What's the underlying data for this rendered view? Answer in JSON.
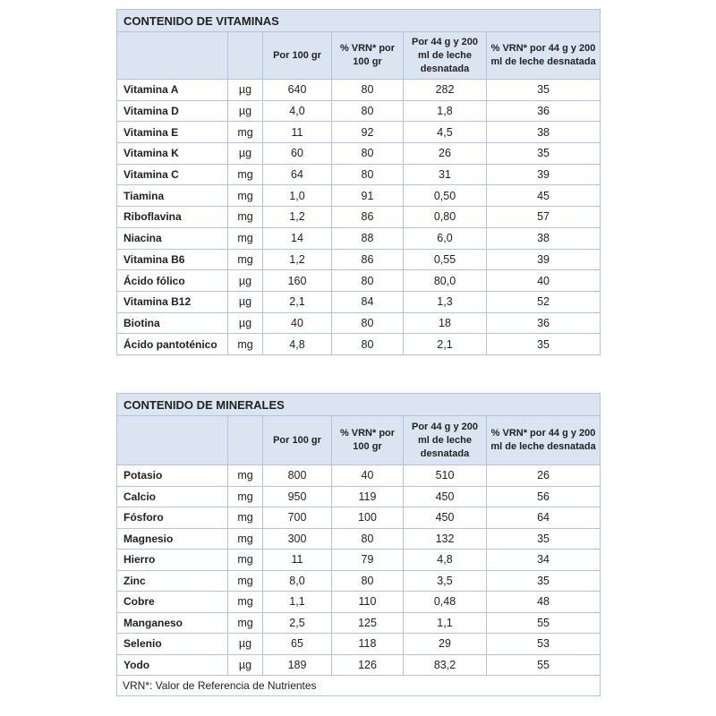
{
  "tables": [
    {
      "title": "CONTENIDO DE VITAMINAS",
      "headers": [
        "",
        "",
        "Por 100 gr",
        "% VRN* por 100 gr",
        "Por 44 g y 200 ml de leche desnatada",
        "% VRN* por 44 g y 200 ml de leche desnatada"
      ],
      "rows": [
        [
          "Vitamina A",
          "µg",
          "640",
          "80",
          "282",
          "35"
        ],
        [
          "Vitamina D",
          "µg",
          "4,0",
          "80",
          "1,8",
          "36"
        ],
        [
          "Vitamina E",
          "mg",
          "11",
          "92",
          "4,5",
          "38"
        ],
        [
          "Vitamina K",
          "µg",
          "60",
          "80",
          "26",
          "35"
        ],
        [
          "Vitamina C",
          "mg",
          "64",
          "80",
          "31",
          "39"
        ],
        [
          "Tiamina",
          "mg",
          "1,0",
          "91",
          "0,50",
          "45"
        ],
        [
          "Riboflavina",
          "mg",
          "1,2",
          "86",
          "0,80",
          "57"
        ],
        [
          "Niacina",
          "mg",
          "14",
          "88",
          "6,0",
          "38"
        ],
        [
          "Vitamina B6",
          "mg",
          "1,2",
          "86",
          "0,55",
          "39"
        ],
        [
          "Ácido fólico",
          "µg",
          "160",
          "80",
          "80,0",
          "40"
        ],
        [
          "Vitamina B12",
          "µg",
          "2,1",
          "84",
          "1,3",
          "52"
        ],
        [
          "Biotina",
          "µg",
          "40",
          "80",
          "18",
          "36"
        ],
        [
          "Ácido pantoténico",
          "mg",
          "4,8",
          "80",
          "2,1",
          "35"
        ]
      ]
    },
    {
      "title": "CONTENIDO DE MINERALES",
      "headers": [
        "",
        "",
        "Por 100 gr",
        "% VRN* por 100 gr",
        "Por 44 g y 200 ml de leche desnatada",
        "% VRN* por 44 g y 200 ml de leche desnatada"
      ],
      "rows": [
        [
          "Potasio",
          "mg",
          "800",
          "40",
          "510",
          "26"
        ],
        [
          "Calcio",
          "mg",
          "950",
          "119",
          "450",
          "56"
        ],
        [
          "Fósforo",
          "mg",
          "700",
          "100",
          "450",
          "64"
        ],
        [
          "Magnesio",
          "mg",
          "300",
          "80",
          "132",
          "35"
        ],
        [
          "Hierro",
          "mg",
          "11",
          "79",
          "4,8",
          "34"
        ],
        [
          "Zinc",
          "mg",
          "8,0",
          "80",
          "3,5",
          "35"
        ],
        [
          "Cobre",
          "mg",
          "1,1",
          "110",
          "0,48",
          "48"
        ],
        [
          "Manganeso",
          "mg",
          "2,5",
          "125",
          "1,1",
          "55"
        ],
        [
          "Selenio",
          "µg",
          "65",
          "118",
          "29",
          "53"
        ],
        [
          "Yodo",
          "µg",
          "189",
          "126",
          "83,2",
          "55"
        ]
      ],
      "footnote": "VRN*: Valor de Referencia de Nutrientes"
    }
  ]
}
